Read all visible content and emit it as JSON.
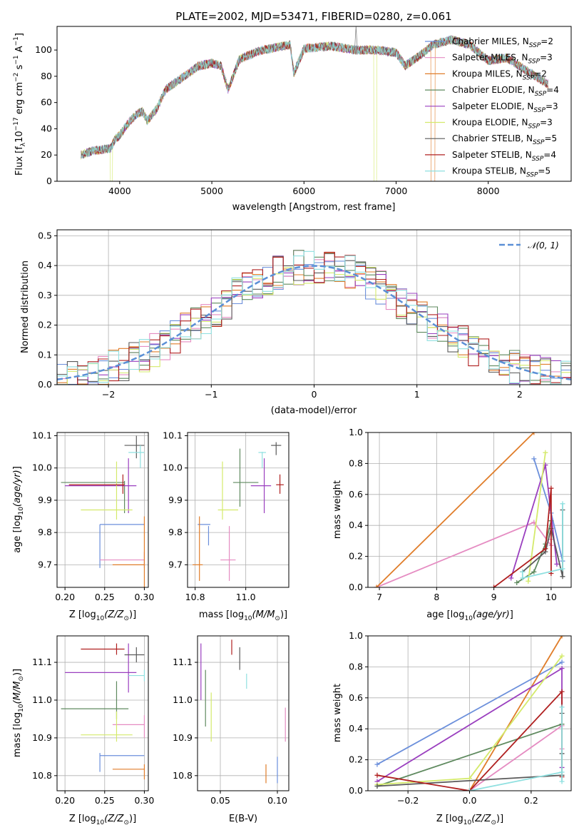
{
  "title": "PLATE=2002, MJD=53471, FIBERID=0280, z=0.061",
  "series_colors": [
    "#6b8fdb",
    "#e58cc2",
    "#e07d2a",
    "#5f8a5f",
    "#9a3fbf",
    "#d4ea6b",
    "#5a5a5a",
    "#b02020",
    "#8fe0e0"
  ],
  "legend_labels": [
    "Chabrier MILES, N",
    "Salpeter MILES, N",
    "Kroupa MILES, N",
    "Chabrier ELODIE, N",
    "Salpeter ELODIE, N",
    "Kroupa ELODIE, N",
    "Chabrier STELIB, N",
    "Salpeter STELIB, N",
    "Kroupa STELIB, N"
  ],
  "legend_ssp": [
    "=2",
    "=3",
    "=2",
    "=4",
    "=3",
    "=3",
    "=5",
    "=4",
    "=5"
  ],
  "normal_label": "𝒩(0, 1)",
  "chart_data": [
    {
      "type": "line",
      "name": "spectrum",
      "xlabel": "wavelength [Angstrom, rest frame]",
      "ylabel": "Flux [f",
      "xlim": [
        3320,
        8900
      ],
      "ylim": [
        0,
        118
      ],
      "xticks": [
        "4000",
        "5000",
        "6000",
        "7000",
        "8000"
      ],
      "yticks": [
        "0",
        "20",
        "40",
        "60",
        "80",
        "100"
      ],
      "continuum": [
        [
          3580,
          20
        ],
        [
          3700,
          23
        ],
        [
          3800,
          24
        ],
        [
          3900,
          25
        ],
        [
          3950,
          32
        ],
        [
          4000,
          35
        ],
        [
          4100,
          45
        ],
        [
          4200,
          52
        ],
        [
          4250,
          53
        ],
        [
          4300,
          46
        ],
        [
          4400,
          55
        ],
        [
          4500,
          70
        ],
        [
          4700,
          80
        ],
        [
          4860,
          88
        ],
        [
          5000,
          90
        ],
        [
          5100,
          88
        ],
        [
          5175,
          70
        ],
        [
          5300,
          93
        ],
        [
          5500,
          99
        ],
        [
          5700,
          102
        ],
        [
          5850,
          104
        ],
        [
          5890,
          82
        ],
        [
          6000,
          101
        ],
        [
          6300,
          103
        ],
        [
          6560,
          100
        ],
        [
          6800,
          100
        ],
        [
          7000,
          98
        ],
        [
          7100,
          88
        ],
        [
          7200,
          93
        ],
        [
          7300,
          98
        ],
        [
          7400,
          104
        ],
        [
          7600,
          108
        ],
        [
          7800,
          104
        ],
        [
          8000,
          92
        ],
        [
          8200,
          94
        ],
        [
          8400,
          85
        ],
        [
          8650,
          74
        ]
      ],
      "dropouts": [
        [
          3900,
          3920
        ],
        [
          6760,
          6790
        ],
        [
          7380,
          7420
        ]
      ],
      "emission_peak": [
        6565,
        118
      ],
      "grid": false
    },
    {
      "type": "step",
      "name": "residual-histogram",
      "xlabel": "(data-model)/error",
      "ylabel": "Normed distribution",
      "xlim": [
        -2.5,
        2.5
      ],
      "ylim": [
        0,
        0.52
      ],
      "xticks": [
        "−2",
        "−1",
        "0",
        "1",
        "2"
      ],
      "yticks": [
        "0.0",
        "0.1",
        "0.2",
        "0.3",
        "0.4",
        "0.5"
      ],
      "bin_width": 0.1,
      "normal_mean": 0,
      "normal_sigma": 1,
      "grid": true,
      "legend": "top-right"
    },
    {
      "type": "errorbar",
      "name": "age-vs-Z",
      "xlabel": "Z [log",
      "ylabel": "age  [log",
      "xlim": [
        0.19,
        0.305
      ],
      "ylim": [
        9.63,
        10.11
      ],
      "xticks": [
        "0.20",
        "0.25",
        "0.30"
      ],
      "yticks": [
        "9.7",
        "9.8",
        "9.9",
        "10.0",
        "10.1"
      ],
      "points": [
        {
          "x": 0.244,
          "xlo": 0.244,
          "xhi": 0.3,
          "y": 9.825,
          "ylo": 9.69,
          "yhi": 9.825
        },
        {
          "x": 0.3,
          "xlo": 0.244,
          "xhi": 0.3,
          "y": 9.715,
          "ylo": 9.69,
          "yhi": 9.74
        },
        {
          "x": 0.3,
          "xlo": 0.26,
          "xhi": 0.3,
          "y": 9.7,
          "ylo": 9.63,
          "yhi": 9.85
        },
        {
          "x": 0.275,
          "xlo": 0.195,
          "xhi": 0.275,
          "y": 9.955,
          "ylo": 9.86,
          "yhi": 9.96
        },
        {
          "x": 0.28,
          "xlo": 0.2,
          "xhi": 0.29,
          "y": 9.945,
          "ylo": 9.86,
          "yhi": 10.03
        },
        {
          "x": 0.265,
          "xlo": 0.22,
          "xhi": 0.285,
          "y": 9.87,
          "ylo": 9.84,
          "yhi": 10.02
        },
        {
          "x": 0.29,
          "xlo": 0.275,
          "xhi": 0.3,
          "y": 10.07,
          "ylo": 10.03,
          "yhi": 10.1
        },
        {
          "x": 0.273,
          "xlo": 0.205,
          "xhi": 0.275,
          "y": 9.948,
          "ylo": 9.92,
          "yhi": 9.98
        },
        {
          "x": 0.295,
          "xlo": 0.28,
          "xhi": 0.3,
          "y": 10.048,
          "ylo": 10.0,
          "yhi": 10.07
        }
      ],
      "grid": true
    },
    {
      "type": "errorbar",
      "name": "age-vs-mass",
      "xlabel": "mass [log",
      "ylabel": "",
      "xlim": [
        10.77,
        11.17
      ],
      "ylim": [
        9.63,
        10.11
      ],
      "xticks": [
        "10.8",
        "11.0"
      ],
      "yticks": [
        "9.7",
        "9.8",
        "9.9",
        "10.0",
        "10.1"
      ],
      "points": [
        {
          "x": 10.853,
          "xlo": 10.81,
          "xhi": 10.86,
          "y": 9.825,
          "ylo": 9.76,
          "yhi": 9.82
        },
        {
          "x": 10.935,
          "xlo": 10.9,
          "xhi": 10.96,
          "y": 9.715,
          "ylo": 9.65,
          "yhi": 9.82
        },
        {
          "x": 10.817,
          "xlo": 10.79,
          "xhi": 10.83,
          "y": 9.7,
          "ylo": 9.65,
          "yhi": 9.85
        },
        {
          "x": 10.977,
          "xlo": 10.95,
          "xhi": 11.05,
          "y": 9.955,
          "ylo": 9.88,
          "yhi": 10.06
        },
        {
          "x": 11.073,
          "xlo": 11.02,
          "xhi": 11.1,
          "y": 9.945,
          "ylo": 9.86,
          "yhi": 10.03
        },
        {
          "x": 10.908,
          "xlo": 10.89,
          "xhi": 10.97,
          "y": 9.87,
          "ylo": 9.84,
          "yhi": 10.02
        },
        {
          "x": 11.12,
          "xlo": 11.1,
          "xhi": 11.14,
          "y": 10.07,
          "ylo": 10.04,
          "yhi": 10.08
        },
        {
          "x": 11.135,
          "xlo": 11.12,
          "xhi": 11.15,
          "y": 9.948,
          "ylo": 9.92,
          "yhi": 9.98
        },
        {
          "x": 11.065,
          "xlo": 11.05,
          "xhi": 11.08,
          "y": 10.048,
          "ylo": 10.0,
          "yhi": 10.05
        }
      ],
      "grid": true
    },
    {
      "type": "line",
      "name": "massweight-vs-age",
      "xlabel": "age  [log",
      "ylabel": "mass weight",
      "xlim": [
        6.8,
        10.35
      ],
      "ylim": [
        0,
        1.0
      ],
      "xticks": [
        "7",
        "8",
        "9",
        "10"
      ],
      "yticks": [
        "0.0",
        "0.2",
        "0.4",
        "0.6",
        "0.8",
        "1.0"
      ],
      "series": [
        {
          "points": [
            [
              9.7,
              0.83
            ],
            [
              10.0,
              0.48
            ],
            [
              10.2,
              0.17
            ]
          ]
        },
        {
          "points": [
            [
              6.95,
              0.0
            ],
            [
              9.7,
              0.42
            ],
            [
              10.0,
              0.27
            ],
            [
              10.0,
              0.31
            ]
          ]
        },
        {
          "points": [
            [
              6.95,
              0.0
            ],
            [
              9.7,
              1.0
            ]
          ]
        },
        {
          "points": [
            [
              9.4,
              0.03
            ],
            [
              9.7,
              0.1
            ],
            [
              9.9,
              0.28
            ],
            [
              10.0,
              0.43
            ]
          ]
        },
        {
          "points": [
            [
              9.3,
              0.06
            ],
            [
              9.9,
              0.79
            ],
            [
              10.1,
              0.15
            ]
          ]
        },
        {
          "points": [
            [
              9.6,
              0.04
            ],
            [
              9.9,
              0.87
            ]
          ]
        },
        {
          "points": [
            [
              9.5,
              0.1
            ],
            [
              9.9,
              0.23
            ],
            [
              10.0,
              0.38
            ],
            [
              10.2,
              0.07
            ],
            [
              10.2,
              0.5
            ]
          ]
        },
        {
          "points": [
            [
              9.0,
              0.0
            ],
            [
              9.9,
              0.25
            ],
            [
              10.0,
              0.64
            ],
            [
              10.0,
              0.09
            ]
          ]
        },
        {
          "points": [
            [
              9.5,
              0.1
            ],
            [
              9.5,
              0.06
            ],
            [
              10.2,
              0.12
            ],
            [
              10.2,
              0.54
            ]
          ]
        }
      ],
      "grid": true
    },
    {
      "type": "errorbar",
      "name": "mass-vs-Z",
      "xlabel": "Z [log",
      "ylabel": "mass [log",
      "xlim": [
        0.19,
        0.305
      ],
      "ylim": [
        10.76,
        11.17
      ],
      "xticks": [
        "0.20",
        "0.25",
        "0.30"
      ],
      "yticks": [
        "10.8",
        "10.9",
        "11.0",
        "11.1"
      ],
      "points": [
        {
          "x": 0.244,
          "xlo": 0.244,
          "xhi": 0.3,
          "y": 10.853,
          "ylo": 10.81,
          "yhi": 10.86
        },
        {
          "x": 0.3,
          "xlo": 0.26,
          "xhi": 0.3,
          "y": 10.935,
          "ylo": 10.9,
          "yhi": 10.96
        },
        {
          "x": 0.3,
          "xlo": 0.26,
          "xhi": 0.3,
          "y": 10.817,
          "ylo": 10.79,
          "yhi": 10.83
        },
        {
          "x": 0.265,
          "xlo": 0.195,
          "xhi": 0.28,
          "y": 10.977,
          "ylo": 10.95,
          "yhi": 11.05
        },
        {
          "x": 0.28,
          "xlo": 0.2,
          "xhi": 0.29,
          "y": 11.073,
          "ylo": 11.02,
          "yhi": 11.15
        },
        {
          "x": 0.265,
          "xlo": 0.22,
          "xhi": 0.285,
          "y": 10.908,
          "ylo": 10.89,
          "yhi": 10.97
        },
        {
          "x": 0.29,
          "xlo": 0.275,
          "xhi": 0.3,
          "y": 11.12,
          "ylo": 11.1,
          "yhi": 11.14
        },
        {
          "x": 0.265,
          "xlo": 0.22,
          "xhi": 0.275,
          "y": 11.135,
          "ylo": 11.12,
          "yhi": 11.15
        },
        {
          "x": 0.3,
          "xlo": 0.28,
          "xhi": 0.3,
          "y": 11.065,
          "ylo": 11.05,
          "yhi": 11.08
        }
      ],
      "grid": true
    },
    {
      "type": "errorbar",
      "name": "mass-vs-EBV",
      "xlabel": "E(B-V)",
      "ylabel": "",
      "xlim": [
        0.03,
        0.11
      ],
      "ylim": [
        10.76,
        11.17
      ],
      "xticks": [
        "0.05",
        "0.10"
      ],
      "yticks": [
        "10.8",
        "10.9",
        "11.0",
        "11.1"
      ],
      "points": [
        {
          "x": 0.1,
          "xlo": 0.1,
          "xhi": 0.1,
          "y": 10.81,
          "ylo": 10.78,
          "yhi": 10.85
        },
        {
          "x": 0.107,
          "xlo": 0.107,
          "xhi": 0.107,
          "y": 10.935,
          "ylo": 10.89,
          "yhi": 10.98
        },
        {
          "x": 0.09,
          "xlo": 0.09,
          "xhi": 0.09,
          "y": 10.8,
          "ylo": 10.78,
          "yhi": 10.83
        },
        {
          "x": 0.037,
          "xlo": 0.037,
          "xhi": 0.037,
          "y": 10.99,
          "ylo": 10.93,
          "yhi": 11.08
        },
        {
          "x": 0.033,
          "xlo": 0.033,
          "xhi": 0.033,
          "y": 11.06,
          "ylo": 11.0,
          "yhi": 11.15
        },
        {
          "x": 0.042,
          "xlo": 0.042,
          "xhi": 0.042,
          "y": 10.96,
          "ylo": 10.89,
          "yhi": 11.02
        },
        {
          "x": 0.067,
          "xlo": 0.067,
          "xhi": 0.067,
          "y": 11.11,
          "ylo": 11.08,
          "yhi": 11.14
        },
        {
          "x": 0.06,
          "xlo": 0.06,
          "xhi": 0.06,
          "y": 11.14,
          "ylo": 11.12,
          "yhi": 11.16
        },
        {
          "x": 0.073,
          "xlo": 0.073,
          "xhi": 0.073,
          "y": 11.05,
          "ylo": 11.03,
          "yhi": 11.07
        }
      ],
      "grid": true
    },
    {
      "type": "line",
      "name": "massweight-vs-Z",
      "xlabel": "Z [log",
      "ylabel": "mass weight",
      "xlim": [
        -0.33,
        0.33
      ],
      "ylim": [
        0,
        1.0
      ],
      "xticks": [
        "−0.2",
        "0.0",
        "0.2"
      ],
      "yticks": [
        "0.0",
        "0.2",
        "0.4",
        "0.6",
        "0.8",
        "1.0"
      ],
      "series": [
        {
          "points": [
            [
              -0.3,
              0.17
            ],
            [
              0.3,
              0.83
            ]
          ]
        },
        {
          "points": [
            [
              0.0,
              0.0
            ],
            [
              0.3,
              0.42
            ],
            [
              0.3,
              0.27
            ]
          ]
        },
        {
          "points": [
            [
              0.0,
              0.0
            ],
            [
              0.3,
              1.0
            ]
          ]
        },
        {
          "points": [
            [
              -0.3,
              0.03
            ],
            [
              0.3,
              0.43
            ]
          ]
        },
        {
          "points": [
            [
              -0.3,
              0.06
            ],
            [
              0.3,
              0.79
            ],
            [
              0.3,
              0.15
            ]
          ]
        },
        {
          "points": [
            [
              -0.3,
              0.04
            ],
            [
              0.0,
              0.08
            ],
            [
              0.3,
              0.87
            ]
          ]
        },
        {
          "points": [
            [
              -0.3,
              0.03
            ],
            [
              0.3,
              0.1
            ],
            [
              0.3,
              0.5
            ],
            [
              0.3,
              0.24
            ]
          ]
        },
        {
          "points": [
            [
              -0.3,
              0.1
            ],
            [
              0.0,
              0.0
            ],
            [
              0.3,
              0.64
            ],
            [
              0.3,
              0.09
            ]
          ]
        },
        {
          "points": [
            [
              0.0,
              0.0
            ],
            [
              0.3,
              0.12
            ],
            [
              0.3,
              0.54
            ],
            [
              0.3,
              0.06
            ]
          ]
        }
      ],
      "grid": true
    }
  ]
}
